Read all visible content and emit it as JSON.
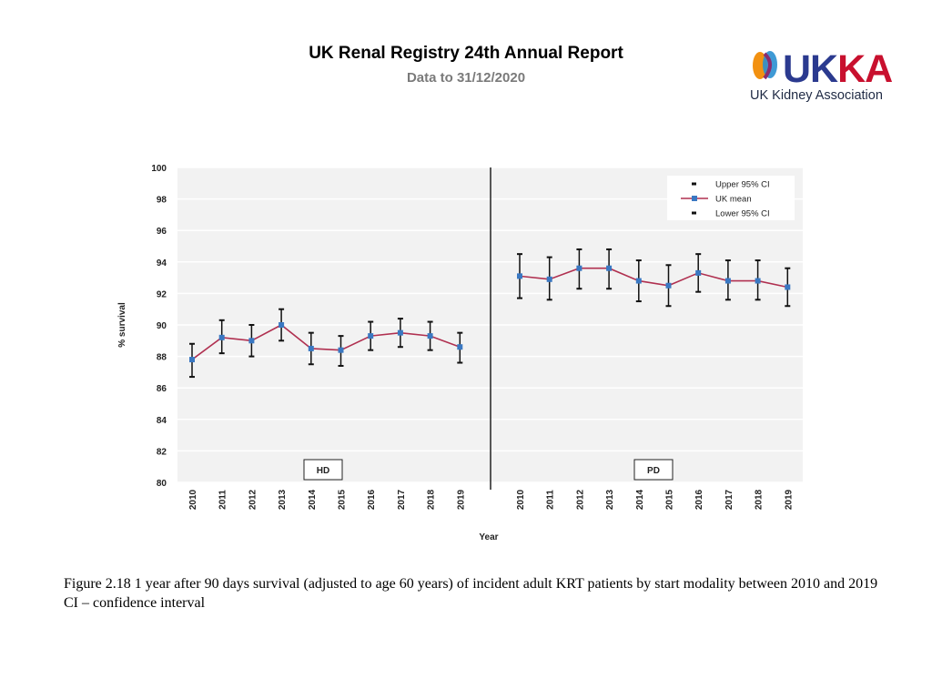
{
  "header": {
    "title": "UK Renal Registry 24th Annual Report",
    "subtitle": "Data to 31/12/2020"
  },
  "logo": {
    "wordmark": "UKKA",
    "tagline": "UK Kidney Association",
    "colors": {
      "navy": "#2b3a8f",
      "red": "#c8102e",
      "orange": "#f29111",
      "blue": "#2a8fd0",
      "purple": "#8a2c6e"
    }
  },
  "caption": {
    "line1": "Figure 2.18 1 year after 90 days survival (adjusted to age 60 years) of incident adult KRT patients by start modality between 2010 and 2019",
    "line2": "CI – confidence interval"
  },
  "chart_data": {
    "type": "line",
    "title": "",
    "xlabel": "Year",
    "ylabel": "% survival",
    "ylim": [
      80,
      100
    ],
    "yticks": [
      80,
      82,
      84,
      86,
      88,
      90,
      92,
      94,
      96,
      98,
      100
    ],
    "grid": true,
    "legend_position": "top-right",
    "legend": [
      "Upper 95% CI",
      "UK mean",
      "Lower 95% CI"
    ],
    "colors": {
      "line": "#b03050",
      "marker": "#3a78c2",
      "errorbar": "#111111",
      "plot_bg": "#f2f2f2",
      "grid": "#ffffff"
    },
    "panels": [
      {
        "label": "HD",
        "x": [
          "2010",
          "2011",
          "2012",
          "2013",
          "2014",
          "2015",
          "2016",
          "2017",
          "2018",
          "2019"
        ],
        "mean": [
          87.8,
          89.2,
          89.0,
          90.0,
          88.5,
          88.4,
          89.3,
          89.5,
          89.3,
          88.6
        ],
        "upper": [
          88.8,
          90.3,
          90.0,
          91.0,
          89.5,
          89.3,
          90.2,
          90.4,
          90.2,
          89.5
        ],
        "lower": [
          86.7,
          88.2,
          88.0,
          89.0,
          87.5,
          87.4,
          88.4,
          88.6,
          88.4,
          87.6
        ]
      },
      {
        "label": "PD",
        "x": [
          "2010",
          "2011",
          "2012",
          "2013",
          "2014",
          "2015",
          "2016",
          "2017",
          "2018",
          "2019"
        ],
        "mean": [
          93.1,
          92.9,
          93.6,
          93.6,
          92.8,
          92.5,
          93.3,
          92.8,
          92.8,
          92.4
        ],
        "upper": [
          94.5,
          94.3,
          94.8,
          94.8,
          94.1,
          93.8,
          94.5,
          94.1,
          94.1,
          93.6
        ],
        "lower": [
          91.7,
          91.6,
          92.3,
          92.3,
          91.5,
          91.2,
          92.1,
          91.6,
          91.6,
          91.2
        ]
      }
    ]
  }
}
